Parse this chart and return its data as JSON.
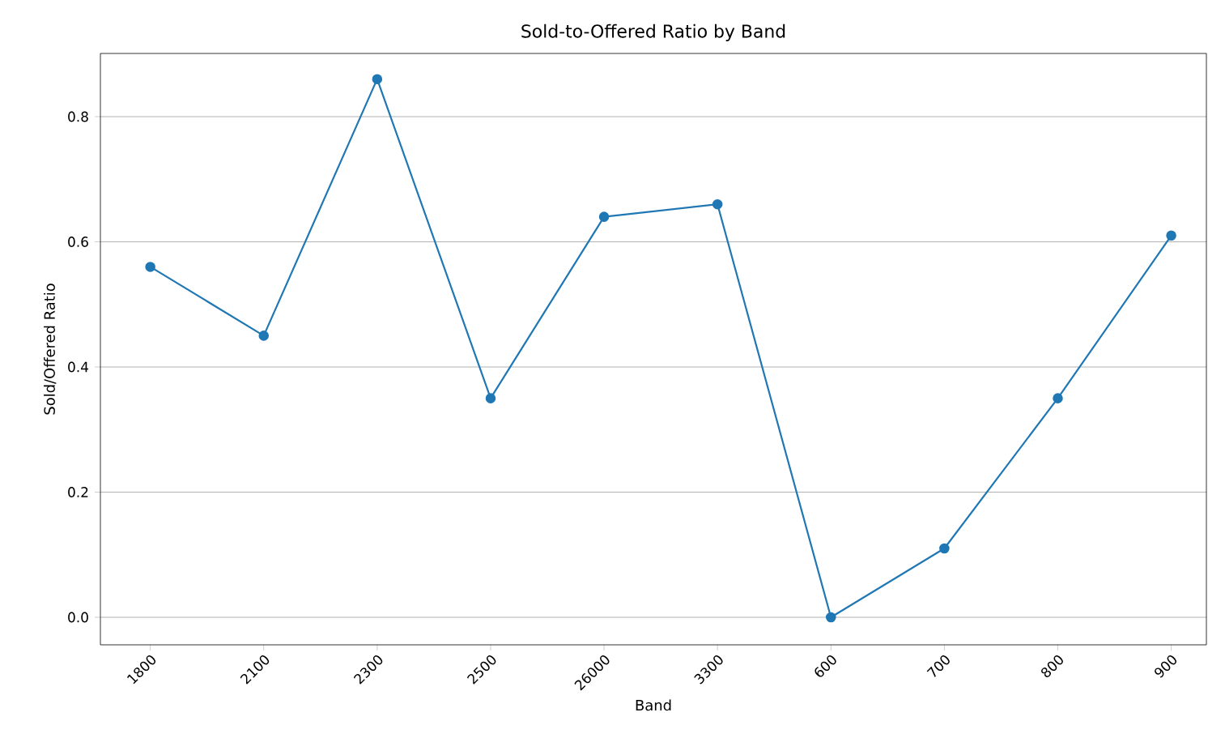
{
  "chart_data": {
    "type": "line",
    "title": "Sold-to-Offered Ratio by Band",
    "xlabel": "Band",
    "ylabel": "Sold/Offered Ratio",
    "categories": [
      "1800",
      "2100",
      "2300",
      "2500",
      "26000",
      "3300",
      "600",
      "700",
      "800",
      "900"
    ],
    "series": [
      {
        "color": "#1f77b4",
        "values": [
          0.56,
          0.45,
          0.86,
          0.35,
          0.64,
          0.66,
          0.0,
          0.11,
          0.35,
          0.61
        ]
      }
    ],
    "ylim": [
      -0.044,
      0.901
    ],
    "yticks": [
      {
        "value": 0,
        "label": "0.0"
      },
      {
        "value": 0.2,
        "label": "0.2"
      },
      {
        "value": 0.4,
        "label": "0.4"
      },
      {
        "value": 0.6,
        "label": "0.6"
      },
      {
        "value": 0.8,
        "label": "0.8"
      }
    ],
    "grid": "y",
    "marker": "circle",
    "line_style": "solid"
  }
}
